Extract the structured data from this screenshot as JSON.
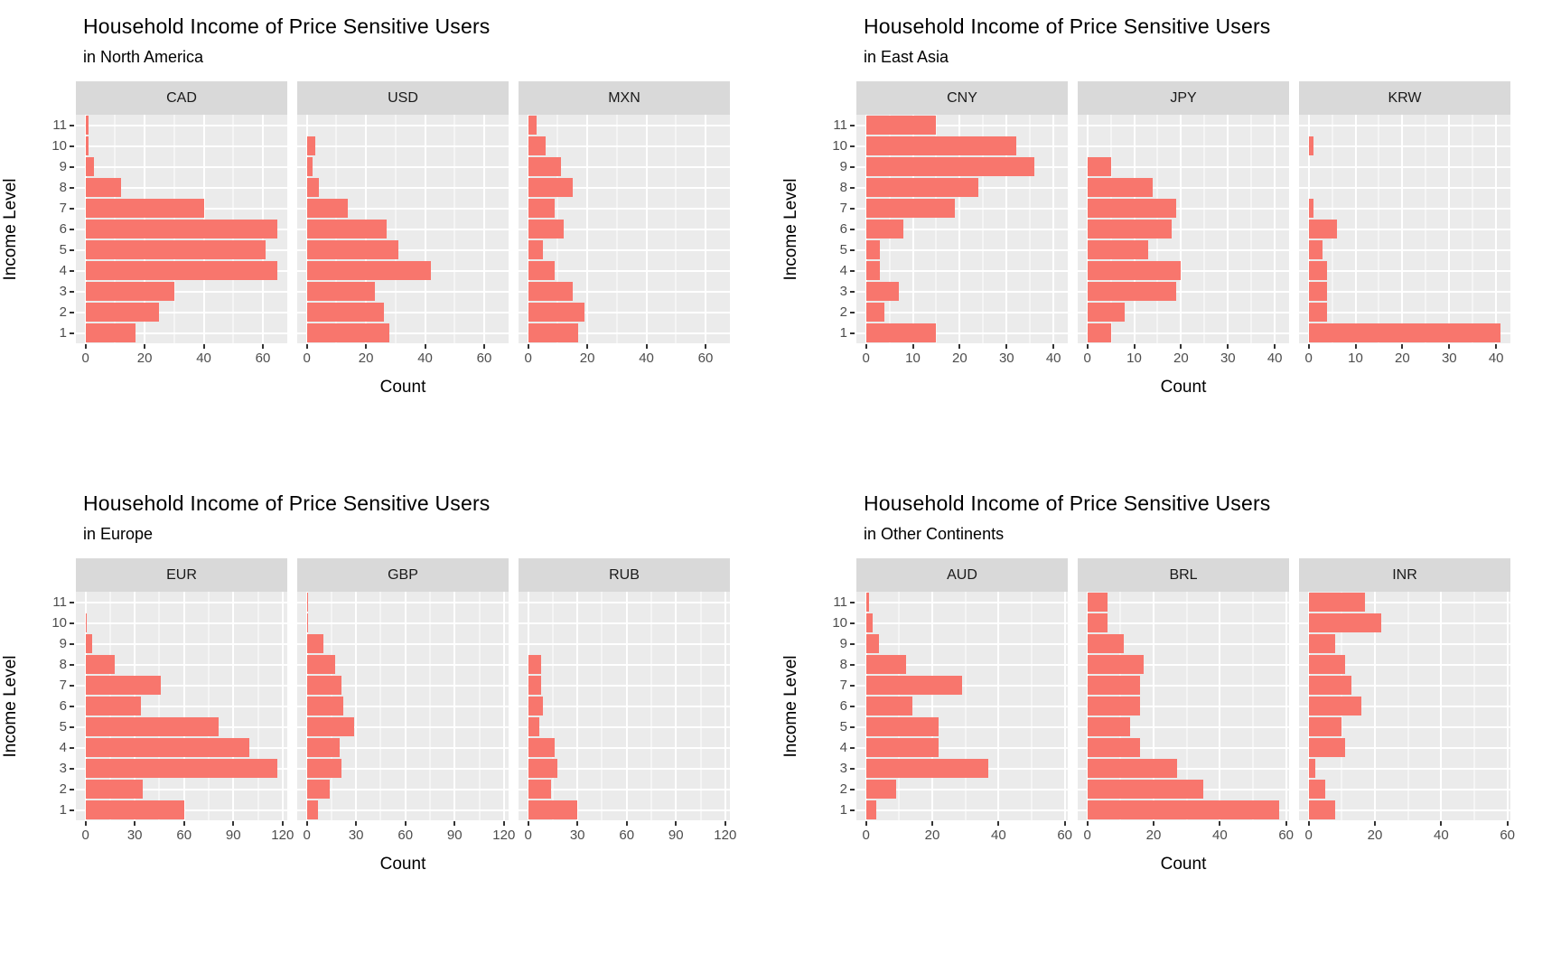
{
  "style": {
    "bar_color": "#F8766D",
    "panel_bg": "#EBEBEB",
    "strip_bg": "#D9D9D9",
    "grid_color": "#FFFFFF",
    "axis_text_color": "#4D4D4D"
  },
  "chart_data": [
    {
      "type": "bar",
      "orientation": "horizontal",
      "title": "Household Income of Price Sensitive Users",
      "subtitle": "in North America",
      "xlabel": "Count",
      "ylabel": "Income Level",
      "legend": "none",
      "grid": true,
      "categories": [
        1,
        2,
        3,
        4,
        5,
        6,
        7,
        8,
        9,
        10,
        11
      ],
      "x_ticks": [
        0,
        20,
        40,
        60
      ],
      "minor_step": 10,
      "data_max": 65,
      "series": [
        {
          "name": "CAD",
          "values": [
            17,
            25,
            30,
            65,
            61,
            65,
            40,
            12,
            3,
            1,
            1
          ]
        },
        {
          "name": "USD",
          "values": [
            28,
            26,
            23,
            42,
            31,
            27,
            14,
            4,
            2,
            3,
            0
          ]
        },
        {
          "name": "MXN",
          "values": [
            17,
            19,
            15,
            9,
            5,
            12,
            9,
            15,
            11,
            6,
            3
          ]
        }
      ]
    },
    {
      "type": "bar",
      "orientation": "horizontal",
      "title": "Household Income of Price Sensitive Users",
      "subtitle": "in East Asia",
      "xlabel": "Count",
      "ylabel": "Income Level",
      "legend": "none",
      "grid": true,
      "categories": [
        1,
        2,
        3,
        4,
        5,
        6,
        7,
        8,
        9,
        10,
        11
      ],
      "x_ticks": [
        0,
        10,
        20,
        30,
        40
      ],
      "minor_step": 5,
      "data_max": 41,
      "series": [
        {
          "name": "CNY",
          "values": [
            15,
            4,
            7,
            3,
            3,
            8,
            19,
            24,
            36,
            32,
            15
          ]
        },
        {
          "name": "JPY",
          "values": [
            5,
            8,
            19,
            20,
            13,
            18,
            19,
            14,
            5,
            0,
            0
          ]
        },
        {
          "name": "KRW",
          "values": [
            41,
            4,
            4,
            4,
            3,
            6,
            1,
            0,
            0,
            1,
            0
          ]
        }
      ]
    },
    {
      "type": "bar",
      "orientation": "horizontal",
      "title": "Household Income of Price Sensitive Users",
      "subtitle": "in Europe",
      "xlabel": "Count",
      "ylabel": "Income Level",
      "legend": "none",
      "grid": true,
      "categories": [
        1,
        2,
        3,
        4,
        5,
        6,
        7,
        8,
        9,
        10,
        11
      ],
      "x_ticks": [
        0,
        30,
        60,
        90,
        120
      ],
      "minor_step": 15,
      "data_max": 117,
      "series": [
        {
          "name": "EUR",
          "values": [
            60,
            35,
            117,
            100,
            81,
            34,
            46,
            18,
            4,
            1,
            0
          ]
        },
        {
          "name": "GBP",
          "values": [
            7,
            14,
            21,
            20,
            29,
            22,
            21,
            17,
            10,
            1,
            1
          ]
        },
        {
          "name": "RUB",
          "values": [
            30,
            14,
            18,
            16,
            7,
            9,
            8,
            8,
            0,
            0,
            0
          ]
        }
      ]
    },
    {
      "type": "bar",
      "orientation": "horizontal",
      "title": "Household Income of Price Sensitive Users",
      "subtitle": "in Other Continents",
      "xlabel": "Count",
      "ylabel": "Income Level",
      "legend": "none",
      "grid": true,
      "categories": [
        1,
        2,
        3,
        4,
        5,
        6,
        7,
        8,
        9,
        10,
        11
      ],
      "x_ticks": [
        0,
        20,
        40,
        60
      ],
      "minor_step": 10,
      "data_max": 58,
      "series": [
        {
          "name": "AUD",
          "values": [
            3,
            9,
            37,
            22,
            22,
            14,
            29,
            12,
            4,
            2,
            1
          ]
        },
        {
          "name": "BRL",
          "values": [
            58,
            35,
            27,
            16,
            13,
            16,
            16,
            17,
            11,
            6,
            6
          ]
        },
        {
          "name": "INR",
          "values": [
            8,
            5,
            2,
            11,
            10,
            16,
            13,
            11,
            8,
            22,
            17
          ]
        }
      ]
    }
  ]
}
